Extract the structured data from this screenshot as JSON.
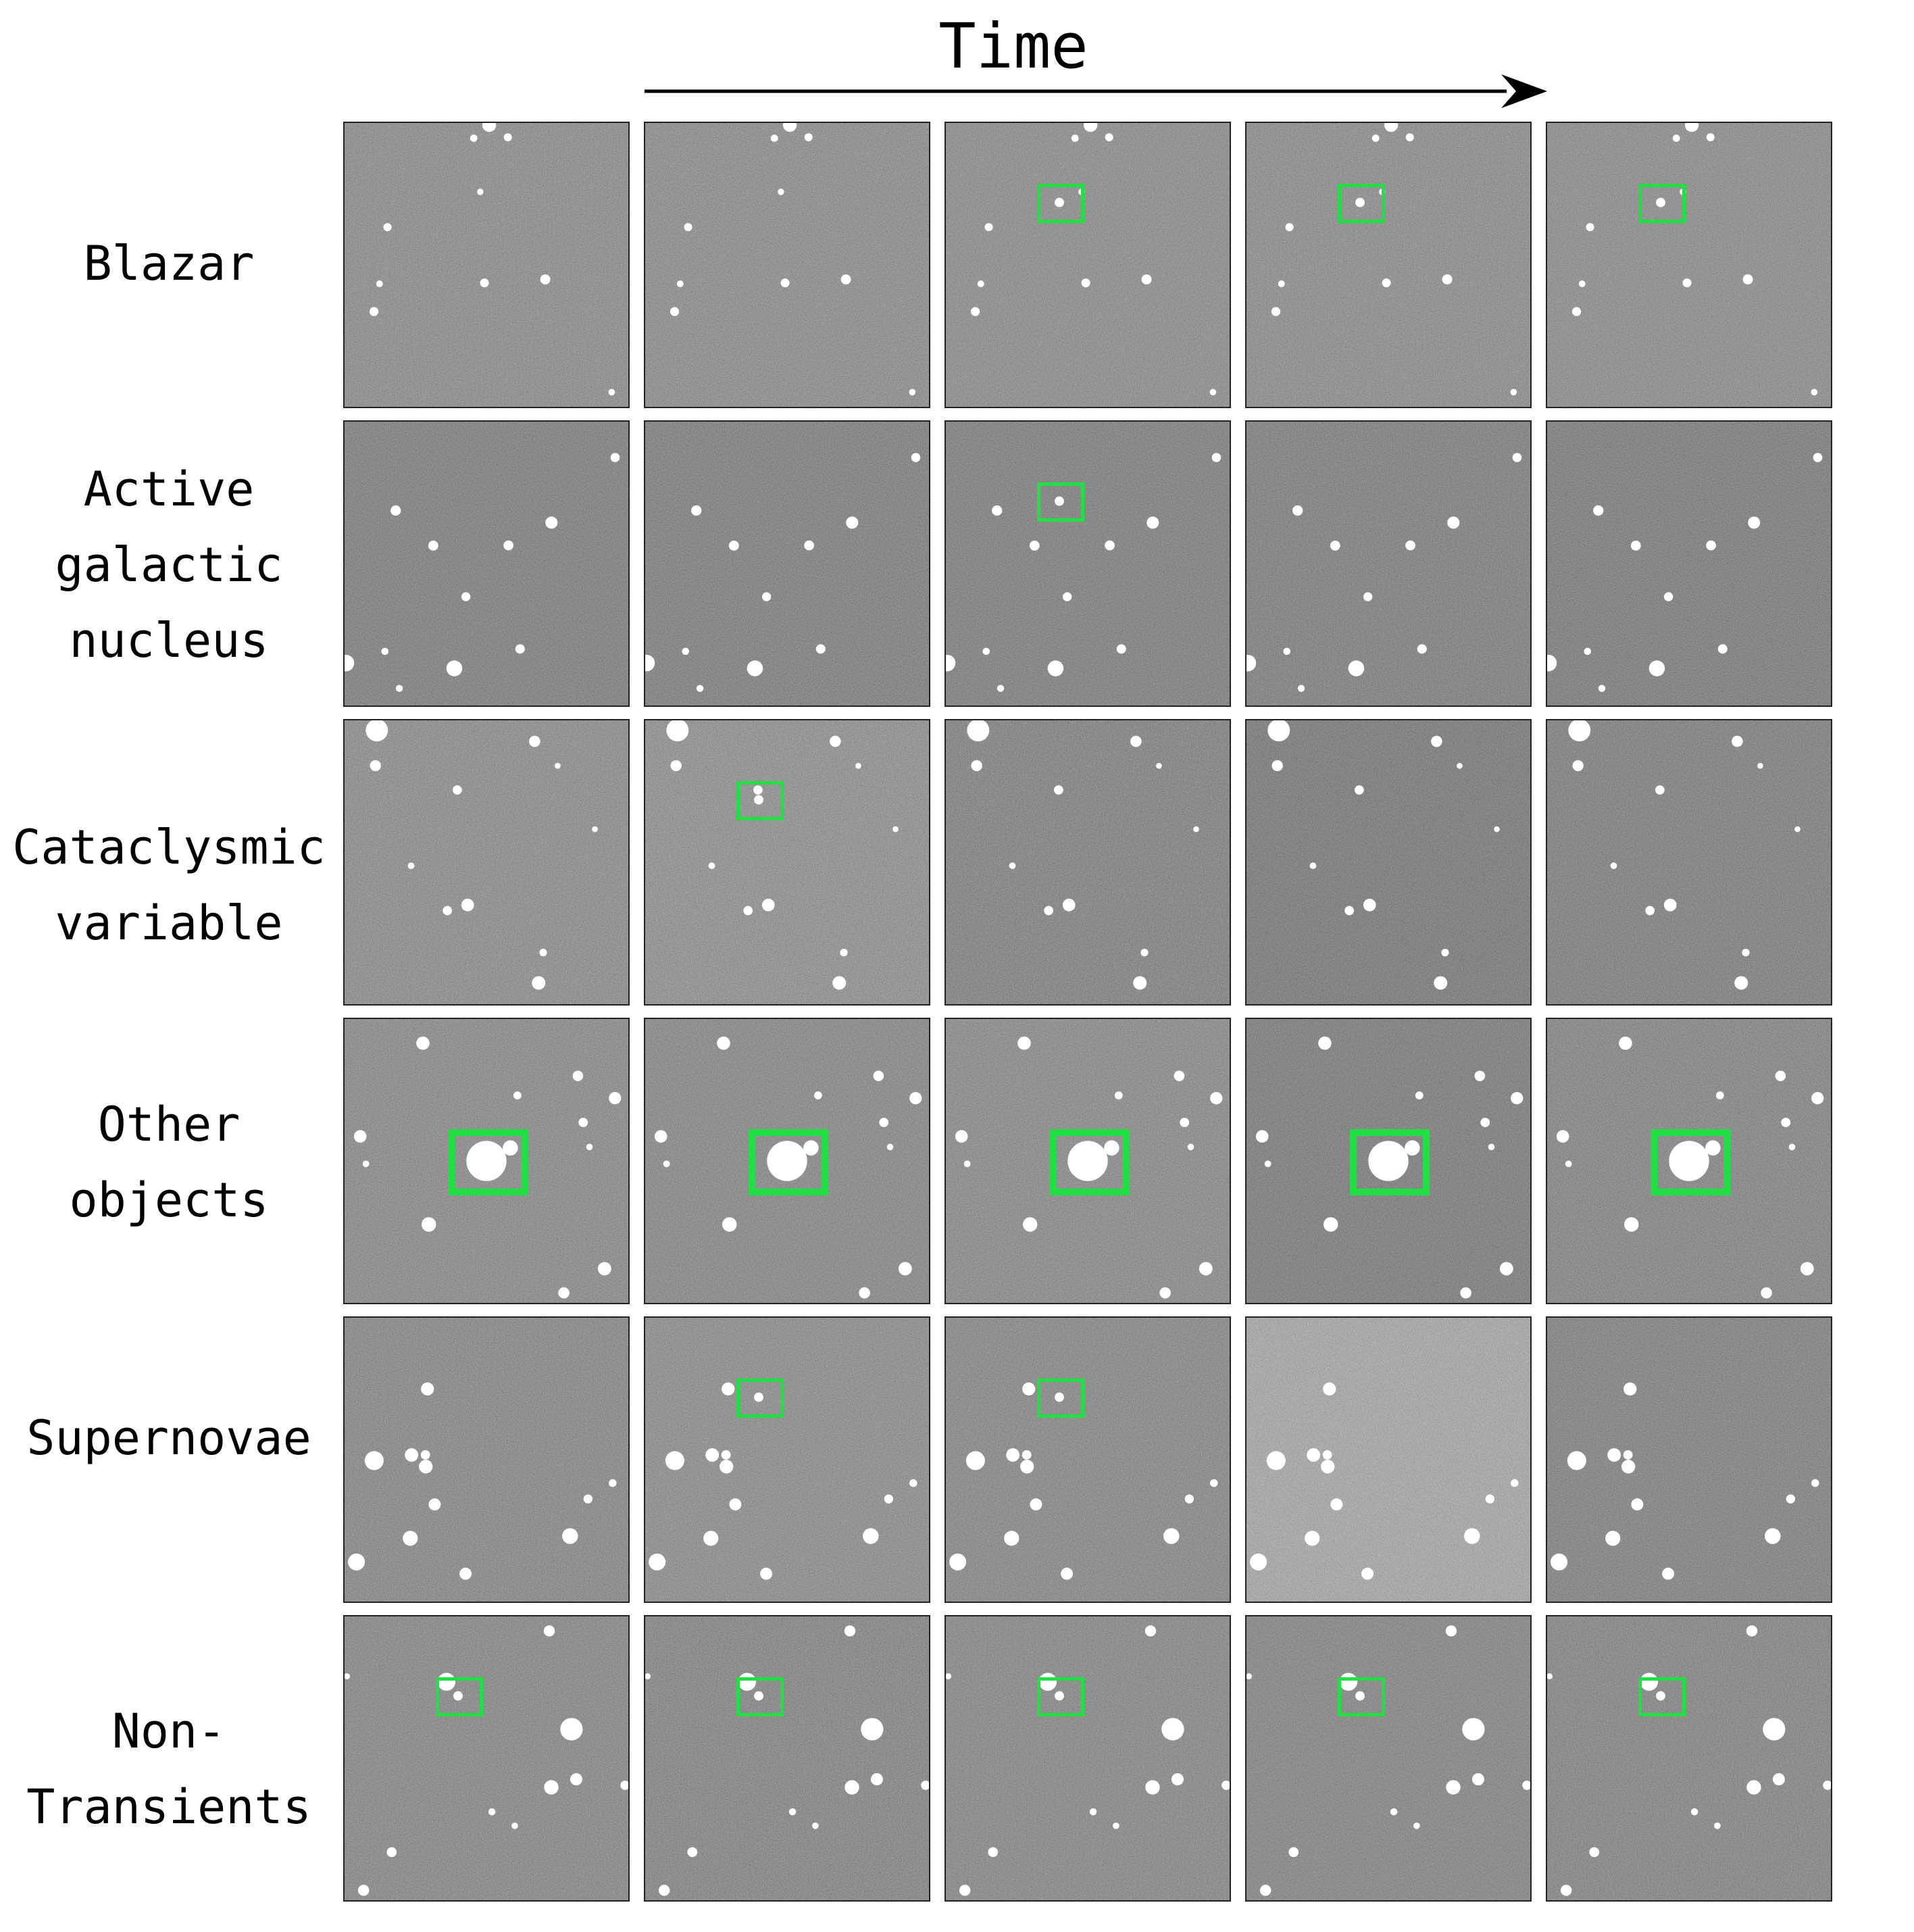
{
  "title": "Time",
  "colors": {
    "marker": "#22e044",
    "arrow": "#000000"
  },
  "rows": [
    {
      "label_lines": [
        "Blazar"
      ],
      "frames": [
        {
          "bg": 0.4,
          "marked": false
        },
        {
          "bg": 0.4,
          "marked": false
        },
        {
          "bg": 0.4,
          "marked": true,
          "size": "small"
        },
        {
          "bg": 0.4,
          "marked": true,
          "size": "small"
        },
        {
          "bg": 0.4,
          "marked": true,
          "size": "small"
        }
      ]
    },
    {
      "label_lines": [
        "Active",
        "galactic",
        "nucleus"
      ],
      "frames": [
        {
          "bg": 0.3,
          "marked": false
        },
        {
          "bg": 0.3,
          "marked": false
        },
        {
          "bg": 0.3,
          "marked": true,
          "size": "small"
        },
        {
          "bg": 0.3,
          "marked": false
        },
        {
          "bg": 0.28,
          "marked": false
        }
      ]
    },
    {
      "label_lines": [
        "Cataclysmic",
        "variable"
      ],
      "frames": [
        {
          "bg": 0.4,
          "marked": false
        },
        {
          "bg": 0.42,
          "marked": true,
          "size": "small"
        },
        {
          "bg": 0.32,
          "marked": false
        },
        {
          "bg": 0.26,
          "marked": false
        },
        {
          "bg": 0.3,
          "marked": false
        }
      ]
    },
    {
      "label_lines": [
        "Other",
        "objects"
      ],
      "frames": [
        {
          "bg": 0.38,
          "marked": true,
          "size": "large"
        },
        {
          "bg": 0.36,
          "marked": true,
          "size": "large"
        },
        {
          "bg": 0.38,
          "marked": true,
          "size": "large"
        },
        {
          "bg": 0.28,
          "marked": true,
          "size": "large"
        },
        {
          "bg": 0.34,
          "marked": true,
          "size": "large"
        }
      ]
    },
    {
      "label_lines": [
        "Supernovae"
      ],
      "frames": [
        {
          "bg": 0.36,
          "marked": false
        },
        {
          "bg": 0.4,
          "marked": true,
          "size": "small"
        },
        {
          "bg": 0.36,
          "marked": true,
          "size": "small"
        },
        {
          "bg": 0.58,
          "marked": false
        },
        {
          "bg": 0.32,
          "marked": false
        }
      ]
    },
    {
      "label_lines": [
        "Non-",
        "Transients"
      ],
      "frames": [
        {
          "bg": 0.36,
          "marked": true,
          "size": "small"
        },
        {
          "bg": 0.34,
          "marked": true,
          "size": "small"
        },
        {
          "bg": 0.36,
          "marked": true,
          "size": "small"
        },
        {
          "bg": 0.34,
          "marked": true,
          "size": "small"
        },
        {
          "bg": 0.34,
          "marked": true,
          "size": "small"
        }
      ]
    }
  ]
}
